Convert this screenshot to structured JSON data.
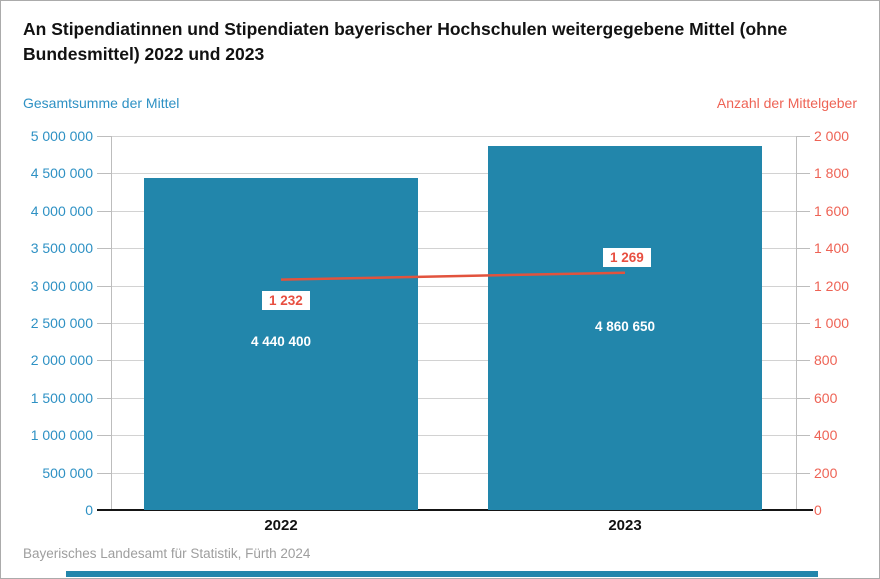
{
  "header": {
    "title": "An Stipendiatinnen und Stipendiaten bayerischer Hochschulen weitergegebene Mittel (ohne Bundesmittel) 2022 und 2023"
  },
  "chart_data": {
    "type": "bar",
    "categories": [
      "2022",
      "2023"
    ],
    "series": [
      {
        "name": "Gesamtsumme der Mittel",
        "type": "bar",
        "axis": "left",
        "values": [
          4440400,
          4860650
        ],
        "value_labels": [
          "4 440 400",
          "4 860 650"
        ],
        "color": "#2286ab"
      },
      {
        "name": "Anzahl der Mittelgeber",
        "type": "line",
        "axis": "right",
        "values": [
          1232,
          1269
        ],
        "value_labels": [
          "1 232",
          "1 269"
        ],
        "color": "#e2533d"
      }
    ],
    "left_axis": {
      "title": "Gesamtsumme der Mittel",
      "color": "#2e91c4",
      "min": 0,
      "max": 5000000,
      "ticks": [
        "5 000 000",
        "4 500 000",
        "4 000 000",
        "3 500 000",
        "3 000 000",
        "2 500 000",
        "2 000 000",
        "1 500 000",
        "1 000 000",
        "500 000",
        "0"
      ]
    },
    "right_axis": {
      "title": "Anzahl der Mittelgeber",
      "color": "#ee6355",
      "min": 0,
      "max": 2000,
      "ticks": [
        "2 000",
        "1 800",
        "1 600",
        "1 400",
        "1 200",
        "1 000",
        "800",
        "600",
        "400",
        "200",
        "0"
      ]
    },
    "grid": true,
    "legend": "none"
  },
  "footer": {
    "source": "Bayerisches Landesamt für Statistik, Fürth 2024"
  }
}
